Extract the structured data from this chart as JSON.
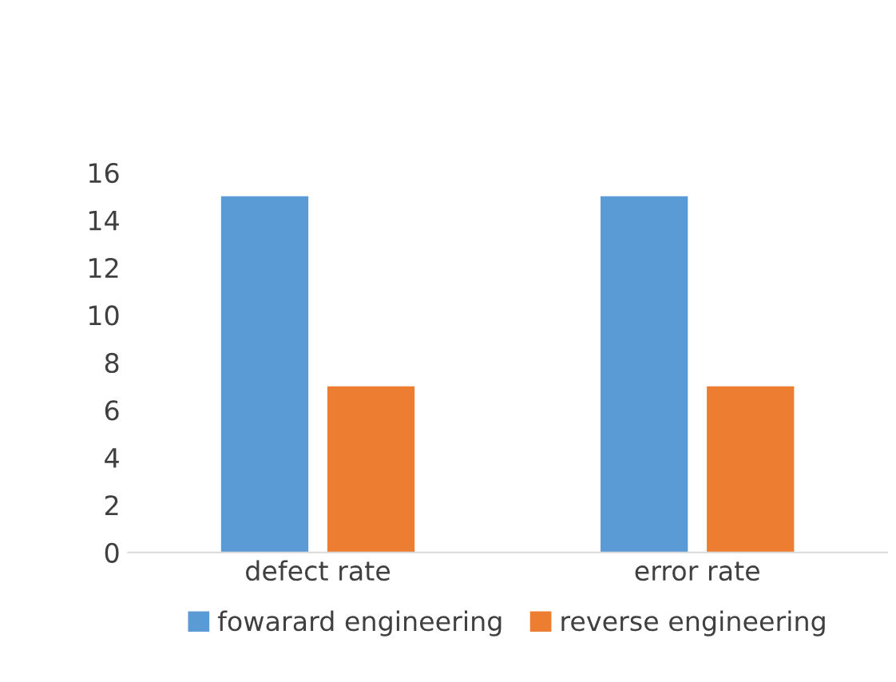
{
  "chart_data": {
    "type": "bar",
    "categories": [
      "defect rate",
      "error rate"
    ],
    "series": [
      {
        "name": "fowarard engineering",
        "color": "#5b9bd5",
        "values": [
          15,
          15
        ]
      },
      {
        "name": "reverse engineering",
        "color": "#ed7d31",
        "values": [
          7,
          7
        ]
      }
    ],
    "ylim": [
      0,
      16
    ],
    "yticks": [
      0,
      2,
      4,
      6,
      8,
      10,
      12,
      14,
      16
    ],
    "grid": false,
    "legend": "bottom"
  }
}
